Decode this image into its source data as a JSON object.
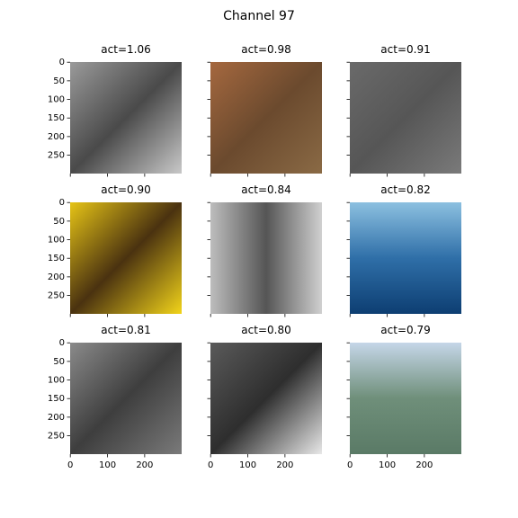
{
  "title": "Channel 97",
  "panels": [
    {
      "title": "act=1.06"
    },
    {
      "title": "act=0.98"
    },
    {
      "title": "act=0.91"
    },
    {
      "title": "act=0.90"
    },
    {
      "title": "act=0.84"
    },
    {
      "title": "act=0.82"
    },
    {
      "title": "act=0.81"
    },
    {
      "title": "act=0.80"
    },
    {
      "title": "act=0.79"
    }
  ],
  "xlim": [
    -0.5,
    299.5
  ],
  "ylim": [
    299.5,
    -0.5
  ],
  "xticks": [
    0,
    100,
    200
  ],
  "yticks": [
    0,
    50,
    100,
    150,
    200,
    250
  ]
}
